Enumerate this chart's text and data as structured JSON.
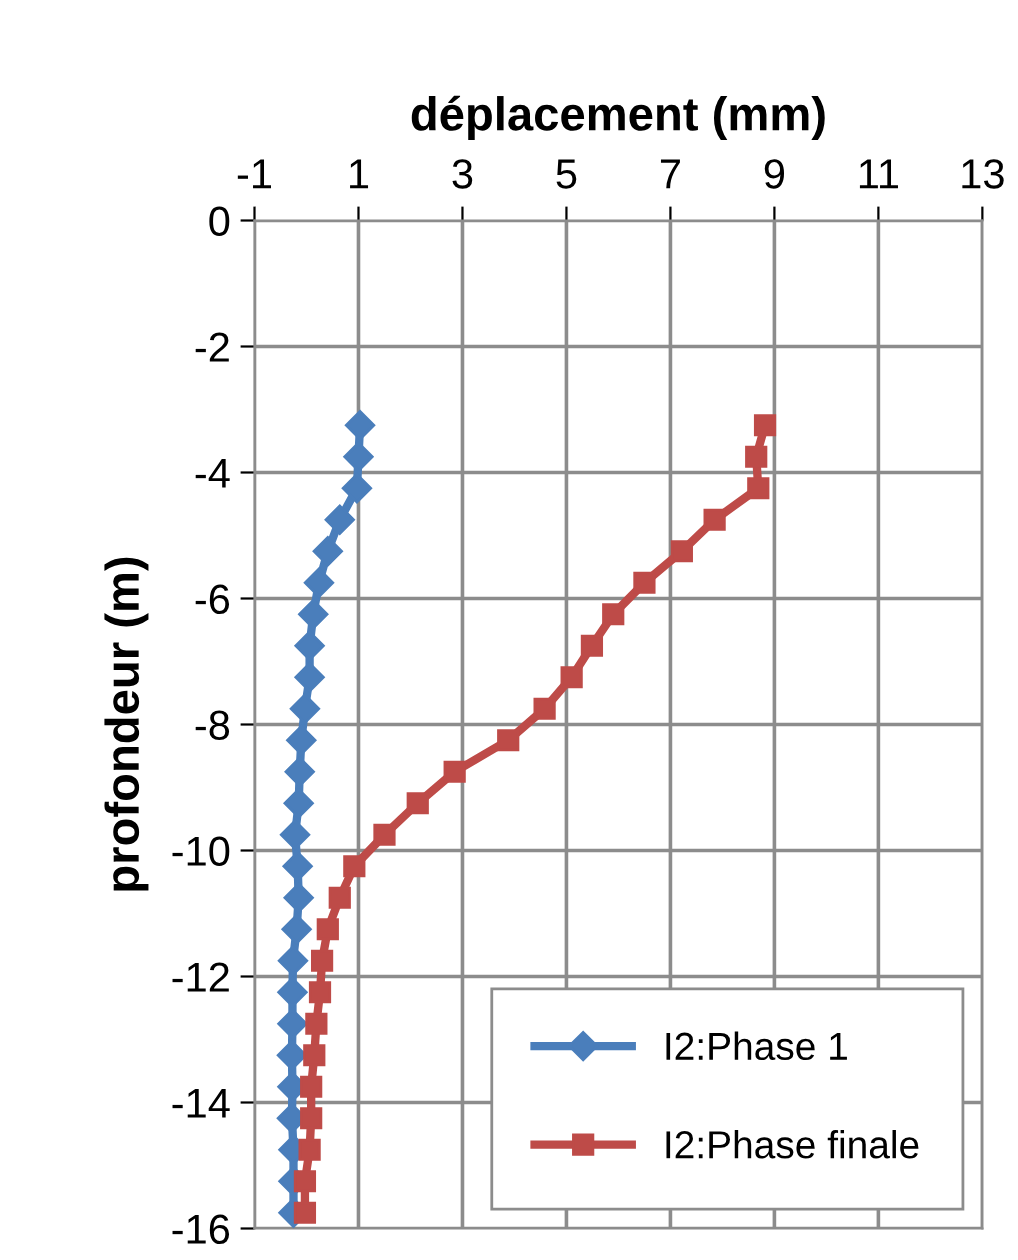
{
  "chart_data": {
    "type": "line",
    "xlabel": "déplacement (mm)",
    "ylabel": "profondeur (m)",
    "xlim": [
      -1,
      13
    ],
    "xticks": [
      -1,
      1,
      3,
      5,
      7,
      9,
      11,
      13
    ],
    "ylim": [
      -16,
      0
    ],
    "yticks": [
      -16,
      -14,
      -12,
      -10,
      -8,
      -6,
      -4,
      -2,
      0
    ],
    "grid": true,
    "legend": "bottom right",
    "line_style": "solid",
    "series": [
      {
        "name": "I2:Phase 1",
        "color": "#4a7ebb",
        "marker": "diamond",
        "x": [
          1.03,
          1.0,
          0.97,
          0.64,
          0.41,
          0.24,
          0.13,
          0.06,
          0.06,
          -0.03,
          -0.1,
          -0.13,
          -0.15,
          -0.22,
          -0.17,
          -0.15,
          -0.19,
          -0.26,
          -0.27,
          -0.27,
          -0.28,
          -0.27,
          -0.28,
          -0.25,
          -0.25,
          -0.25
        ],
        "values": [
          -3.25,
          -3.75,
          -4.25,
          -4.75,
          -5.25,
          -5.75,
          -6.25,
          -6.75,
          -7.25,
          -7.75,
          -8.25,
          -8.75,
          -9.25,
          -9.75,
          -10.25,
          -10.75,
          -11.25,
          -11.75,
          -12.25,
          -12.75,
          -13.25,
          -13.75,
          -14.25,
          -14.75,
          -15.25,
          -15.75
        ]
      },
      {
        "name": "I2:Phase finale",
        "color": "#be4b48",
        "marker": "square",
        "x": [
          8.82,
          8.65,
          8.69,
          7.85,
          7.22,
          6.5,
          5.9,
          5.49,
          5.1,
          4.58,
          3.88,
          2.85,
          2.14,
          1.5,
          0.92,
          0.64,
          0.41,
          0.3,
          0.26,
          0.19,
          0.15,
          0.09,
          0.09,
          0.06,
          -0.03,
          -0.03
        ],
        "values": [
          -3.25,
          -3.75,
          -4.25,
          -4.75,
          -5.25,
          -5.75,
          -6.25,
          -6.75,
          -7.25,
          -7.75,
          -8.25,
          -8.75,
          -9.25,
          -9.75,
          -10.25,
          -10.75,
          -11.25,
          -11.75,
          -12.25,
          -12.75,
          -13.25,
          -13.75,
          -14.25,
          -14.75,
          -15.25,
          -15.75
        ]
      }
    ]
  }
}
